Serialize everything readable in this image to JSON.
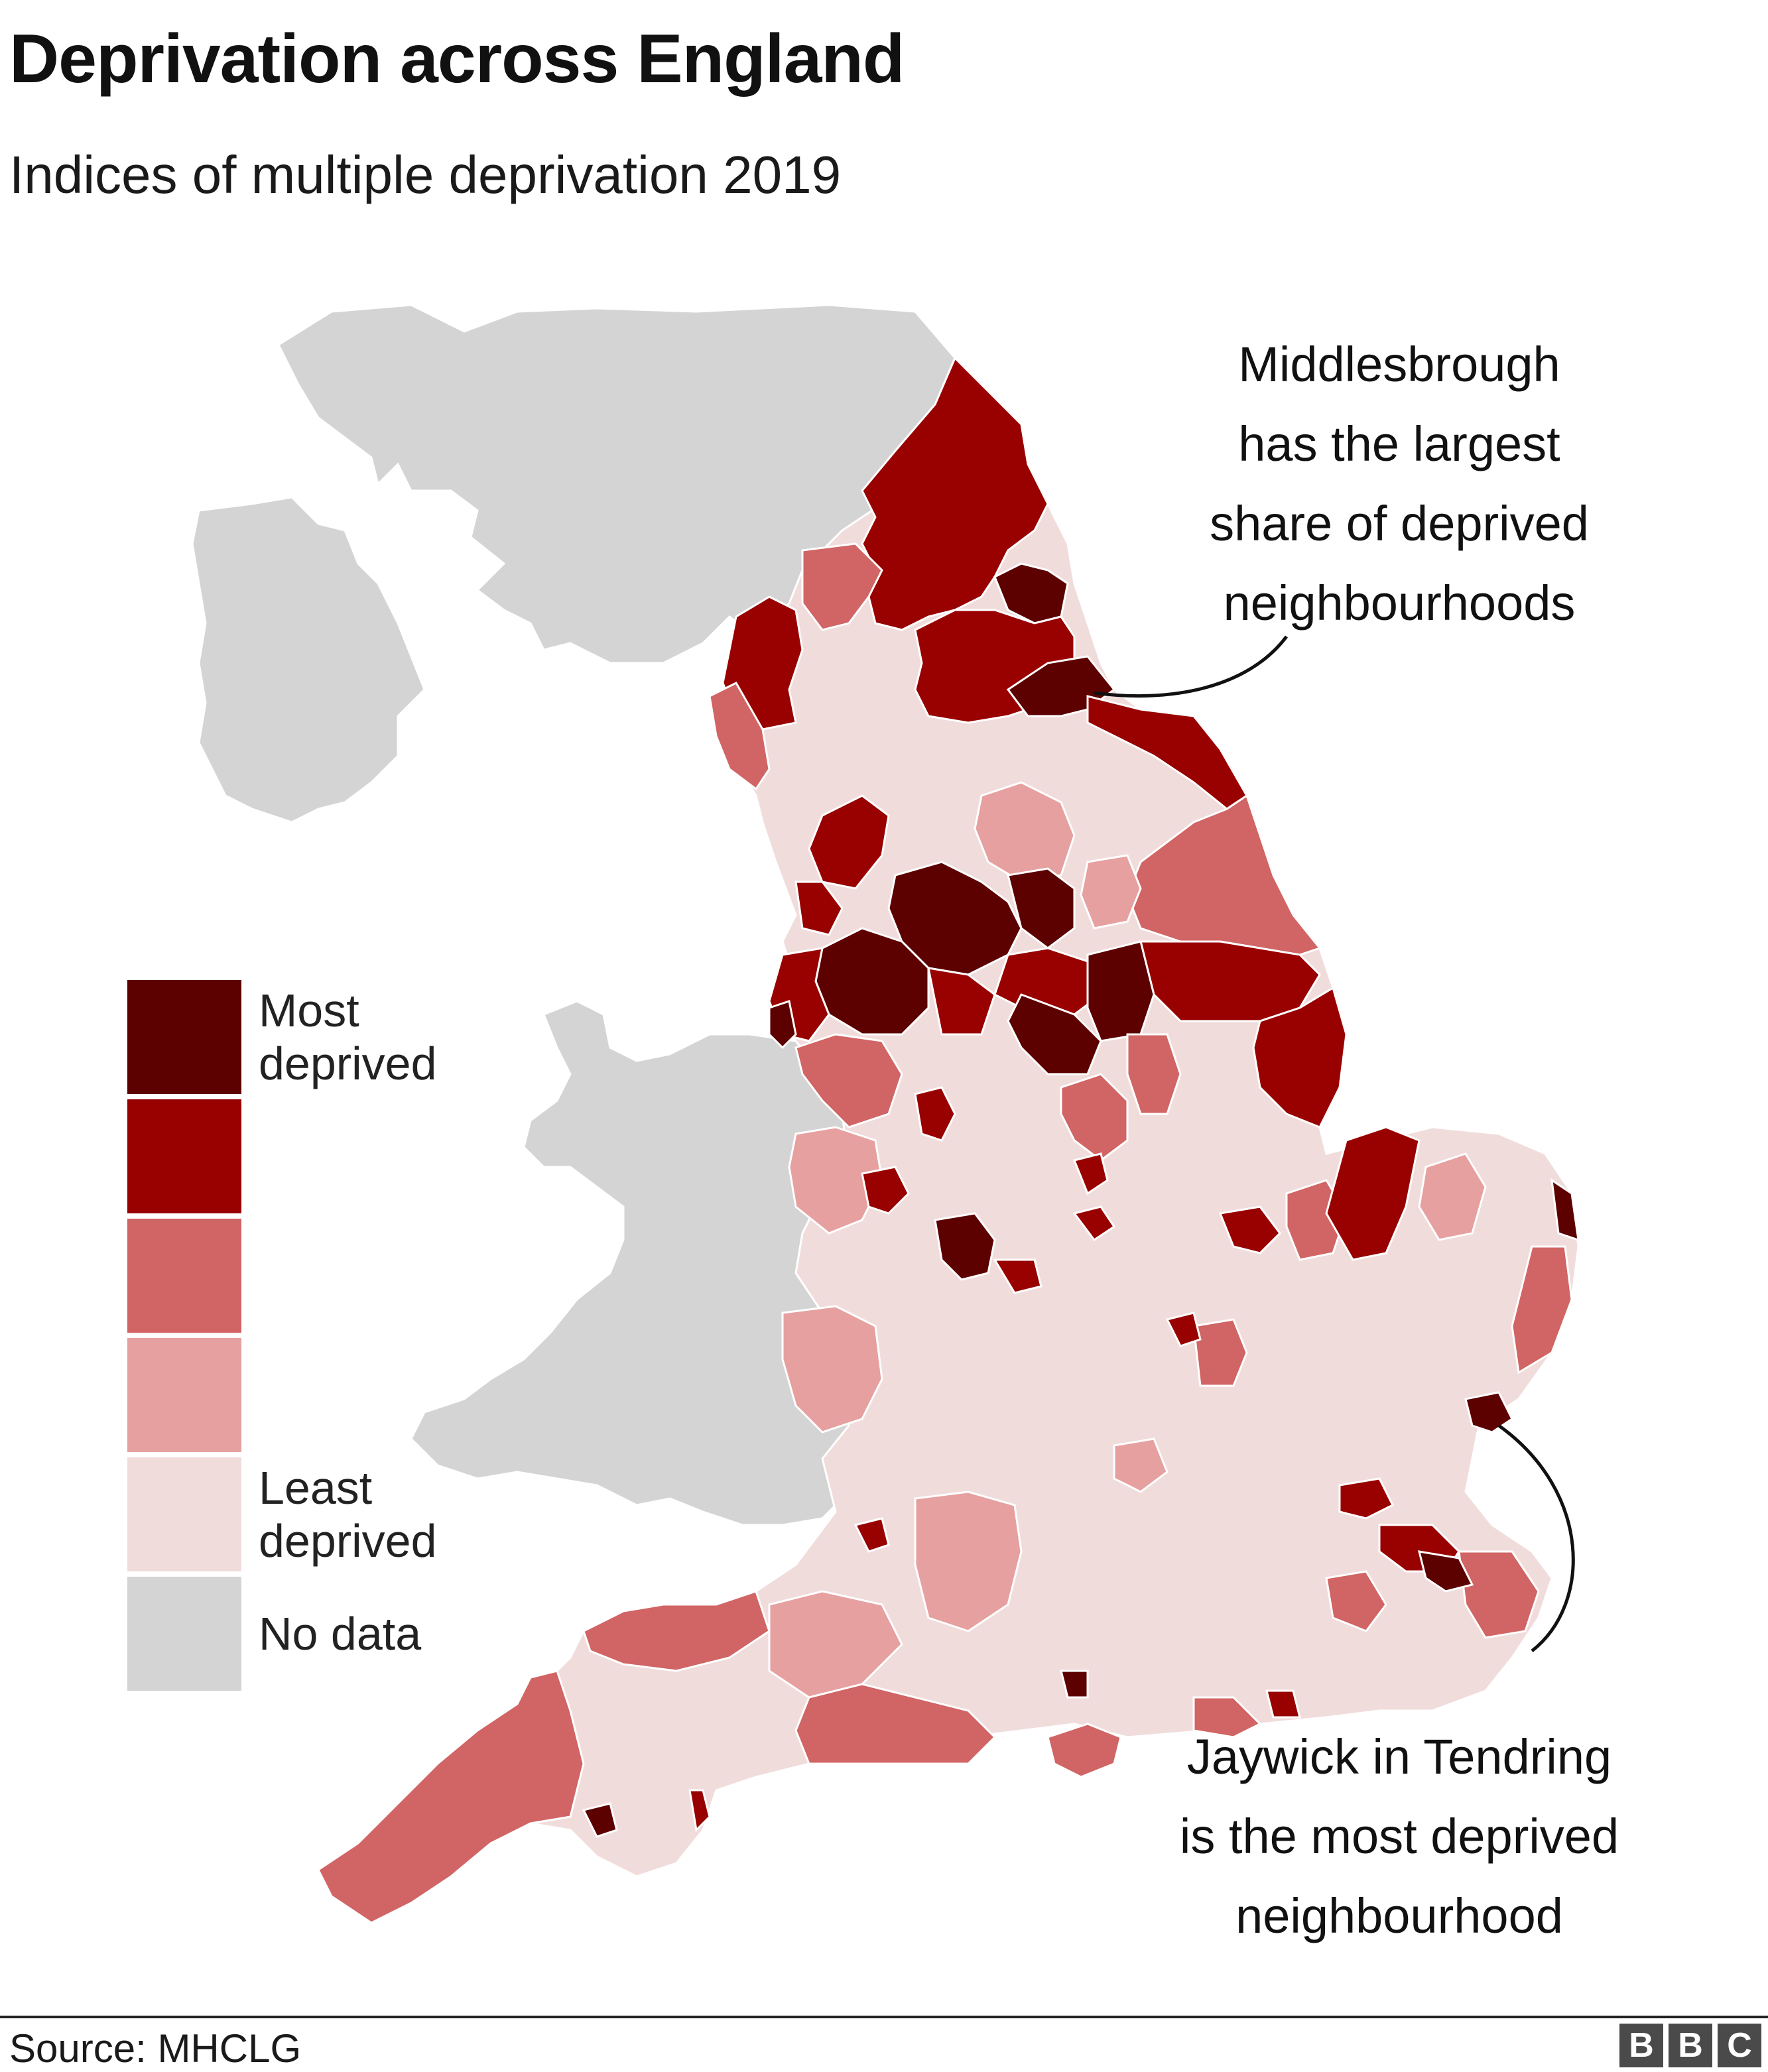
{
  "title": "Deprivation across England",
  "subtitle": "Indices of multiple deprivation 2019",
  "legend": [
    {
      "key": "q1",
      "line1": "Most",
      "line2": "deprived",
      "color": "#5c0000"
    },
    {
      "key": "q2",
      "line1": "",
      "line2": "",
      "color": "#990000"
    },
    {
      "key": "q3",
      "line1": "",
      "line2": "",
      "color": "#d16464"
    },
    {
      "key": "q4",
      "line1": "",
      "line2": "",
      "color": "#e6a0a0"
    },
    {
      "key": "q5",
      "line1": "Least",
      "line2": "deprived",
      "color": "#f1dcdc"
    },
    {
      "key": "na",
      "line1": "No data",
      "line2": "",
      "color": "#d4d4d4"
    }
  ],
  "annotations": {
    "middlesbrough": [
      "Middlesbrough",
      "has the largest",
      "share of deprived",
      "neighbourhoods"
    ],
    "jaywick": [
      "Jaywick in Tendring",
      "is the most deprived",
      "neighbourhood"
    ]
  },
  "source": "Source: MHCLG",
  "logo": [
    "B",
    "B",
    "C"
  ]
}
